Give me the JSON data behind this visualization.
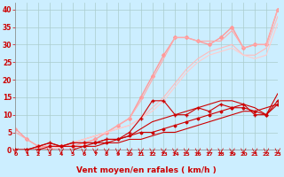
{
  "background_color": "#cceeff",
  "grid_color": "#aacccc",
  "xlabel": "Vent moyen/en rafales ( km/h )",
  "xlabel_color": "#cc0000",
  "tick_color": "#cc0000",
  "xlim": [
    0,
    23
  ],
  "ylim": [
    0,
    42
  ],
  "xticks": [
    0,
    1,
    2,
    3,
    4,
    5,
    6,
    7,
    8,
    9,
    10,
    11,
    12,
    13,
    14,
    15,
    16,
    17,
    18,
    19,
    20,
    21,
    22,
    23
  ],
  "yticks": [
    0,
    5,
    10,
    15,
    20,
    25,
    30,
    35,
    40
  ],
  "series": [
    {
      "x": [
        0,
        1,
        2,
        3,
        4,
        5,
        6,
        7,
        8,
        9,
        10,
        11,
        12,
        13,
        14,
        15,
        16,
        17,
        18,
        19,
        20,
        21,
        22,
        23
      ],
      "y": [
        0,
        0,
        0,
        0,
        0,
        0,
        1,
        1,
        2,
        2,
        3,
        3,
        4,
        5,
        5,
        6,
        7,
        8,
        9,
        10,
        11,
        11,
        12,
        13
      ],
      "color": "#cc0000",
      "linewidth": 0.8,
      "marker": null,
      "markersize": 0,
      "zorder": 3
    },
    {
      "x": [
        0,
        1,
        2,
        3,
        4,
        5,
        6,
        7,
        8,
        9,
        10,
        11,
        12,
        13,
        14,
        15,
        16,
        17,
        18,
        19,
        20,
        21,
        22,
        23
      ],
      "y": [
        0,
        0,
        0,
        1,
        1,
        1,
        1,
        2,
        2,
        3,
        4,
        5,
        5,
        6,
        7,
        8,
        9,
        10,
        11,
        12,
        12,
        11,
        10,
        13
      ],
      "color": "#cc0000",
      "linewidth": 0.8,
      "marker": "D",
      "markersize": 1.5,
      "zorder": 4
    },
    {
      "x": [
        0,
        1,
        2,
        3,
        4,
        5,
        6,
        7,
        8,
        9,
        10,
        11,
        12,
        13,
        14,
        15,
        16,
        17,
        18,
        19,
        20,
        21,
        22,
        23
      ],
      "y": [
        0,
        0,
        1,
        2,
        1,
        2,
        2,
        2,
        3,
        3,
        5,
        9,
        14,
        14,
        10,
        10,
        12,
        11,
        13,
        12,
        13,
        10,
        10,
        14
      ],
      "color": "#cc0000",
      "linewidth": 0.8,
      "marker": "+",
      "markersize": 3,
      "zorder": 4
    },
    {
      "x": [
        0,
        1,
        2,
        3,
        4,
        5,
        6,
        7,
        8,
        9,
        10,
        11,
        12,
        13,
        14,
        15,
        16,
        17,
        18,
        19,
        20,
        21,
        22,
        23
      ],
      "y": [
        0,
        0,
        1,
        2,
        1,
        2,
        2,
        2,
        3,
        3,
        4,
        6,
        8,
        9,
        10,
        11,
        12,
        13,
        14,
        14,
        13,
        12,
        10,
        16
      ],
      "color": "#cc0000",
      "linewidth": 0.8,
      "marker": null,
      "markersize": 0,
      "zorder": 3
    },
    {
      "x": [
        0,
        1,
        2,
        3,
        4,
        5,
        6,
        7,
        8,
        9,
        10,
        11,
        12,
        13,
        14,
        15,
        16,
        17,
        18,
        19,
        20,
        21,
        22,
        23
      ],
      "y": [
        6,
        3,
        1,
        1,
        1,
        1,
        2,
        3,
        5,
        7,
        9,
        15,
        21,
        27,
        32,
        32,
        31,
        30,
        32,
        35,
        29,
        30,
        30,
        40
      ],
      "color": "#ff9999",
      "linewidth": 1.0,
      "marker": "D",
      "markersize": 2.0,
      "zorder": 2
    },
    {
      "x": [
        0,
        1,
        2,
        3,
        4,
        5,
        6,
        7,
        8,
        9,
        10,
        11,
        12,
        13,
        14,
        15,
        16,
        17,
        18,
        19,
        20,
        21,
        22,
        23
      ],
      "y": [
        5,
        3,
        1,
        0,
        1,
        2,
        3,
        4,
        5,
        7,
        9,
        14,
        20,
        26,
        32,
        32,
        31,
        31,
        31,
        34,
        29,
        30,
        30,
        40
      ],
      "color": "#ffaaaa",
      "linewidth": 0.8,
      "marker": null,
      "markersize": 0,
      "zorder": 2
    },
    {
      "x": [
        0,
        1,
        2,
        3,
        4,
        5,
        6,
        7,
        8,
        9,
        10,
        11,
        12,
        13,
        14,
        15,
        16,
        17,
        18,
        19,
        20,
        21,
        22,
        23
      ],
      "y": [
        0,
        0,
        0,
        0,
        1,
        2,
        3,
        4,
        5,
        6,
        7,
        9,
        12,
        15,
        19,
        23,
        26,
        28,
        29,
        30,
        27,
        27,
        29,
        38
      ],
      "color": "#ffbbbb",
      "linewidth": 0.8,
      "marker": null,
      "markersize": 0,
      "zorder": 2
    },
    {
      "x": [
        0,
        1,
        2,
        3,
        4,
        5,
        6,
        7,
        8,
        9,
        10,
        11,
        12,
        13,
        14,
        15,
        16,
        17,
        18,
        19,
        20,
        21,
        22,
        23
      ],
      "y": [
        0,
        0,
        0,
        0,
        1,
        2,
        3,
        4,
        5,
        6,
        7,
        9,
        11,
        14,
        18,
        22,
        25,
        27,
        28,
        29,
        27,
        26,
        27,
        36
      ],
      "color": "#ffcccc",
      "linewidth": 0.8,
      "marker": null,
      "markersize": 0,
      "zorder": 2
    }
  ]
}
